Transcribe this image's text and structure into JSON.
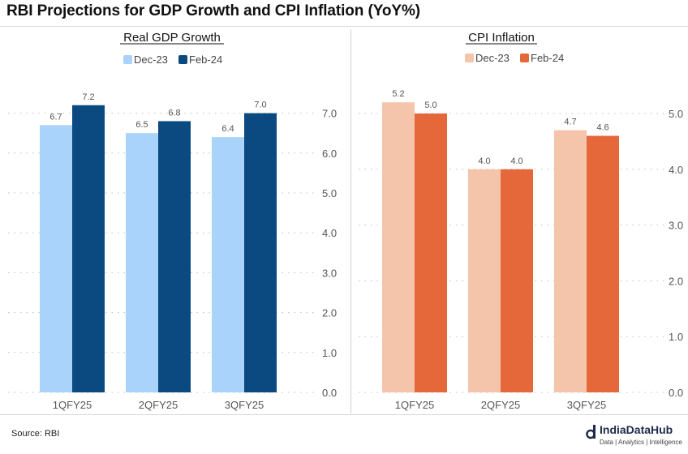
{
  "title": "RBI Projections for GDP Growth and CPI Inflation (YoY%)",
  "source": "Source: RBI",
  "brand": {
    "name": "IndiaDataHub",
    "tagline": "Data | Analytics | Intelligence",
    "logo_icon": "d-logo-icon"
  },
  "chart_data": [
    {
      "type": "bar",
      "title": "Real GDP Growth",
      "categories": [
        "1QFY25",
        "2QFY25",
        "3QFY25"
      ],
      "series": [
        {
          "name": "Dec-23",
          "color": "#a9d3fb",
          "values": [
            6.7,
            6.5,
            6.4
          ]
        },
        {
          "name": "Feb-24",
          "color": "#0b4a80",
          "values": [
            7.2,
            6.8,
            7.0
          ]
        }
      ],
      "yticks": [
        "0.0",
        "1.0",
        "2.0",
        "3.0",
        "4.0",
        "5.0",
        "6.0",
        "7.0"
      ],
      "ylim": [
        0,
        7.0
      ],
      "data_labels": [
        [
          "6.7",
          "6.5",
          "6.4"
        ],
        [
          "7.2",
          "6.8",
          "7.0"
        ]
      ],
      "legend_position": "top",
      "grid": "dotted horizontal"
    },
    {
      "type": "bar",
      "title": "CPI Inflation",
      "categories": [
        "1QFY25",
        "2QFY25",
        "3QFY25"
      ],
      "series": [
        {
          "name": "Dec-23",
          "color": "#f4c4ab",
          "values": [
            5.2,
            4.0,
            4.7
          ]
        },
        {
          "name": "Feb-24",
          "color": "#e5683a",
          "values": [
            5.0,
            4.0,
            4.6
          ]
        }
      ],
      "yticks": [
        "0.0",
        "1.0",
        "2.0",
        "3.0",
        "4.0",
        "5.0"
      ],
      "ylim": [
        0,
        5.0
      ],
      "data_labels": [
        [
          "5.2",
          "4.0",
          "4.7"
        ],
        [
          "5.0",
          "4.0",
          "4.6"
        ]
      ],
      "legend_position": "top",
      "grid": "dotted horizontal"
    }
  ]
}
